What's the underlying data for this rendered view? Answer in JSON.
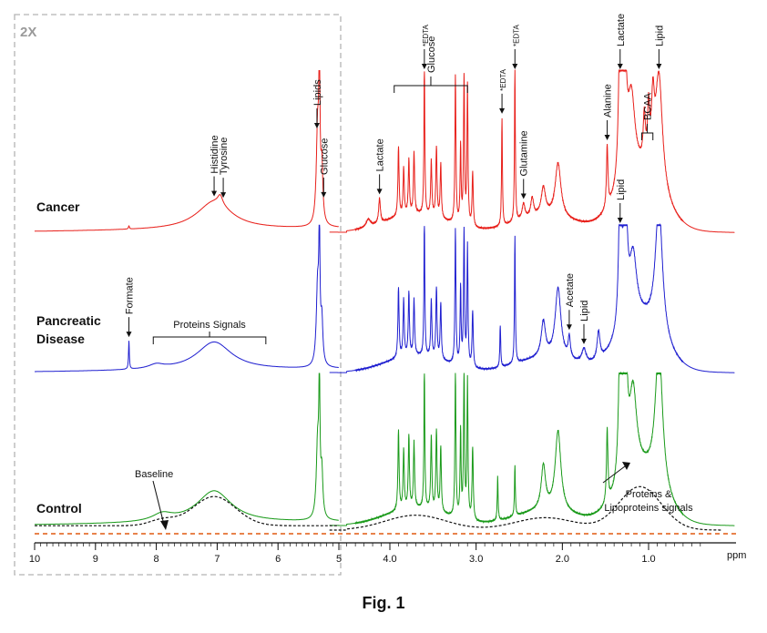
{
  "chart_data": {
    "type": "line",
    "title": "",
    "xlabel": "ppm",
    "x_unit": "ppm",
    "xlim": [
      10,
      0
    ],
    "x_reversed": true,
    "grid": false,
    "zoom_region": {
      "label": "2X",
      "x_range": [
        10,
        5
      ]
    },
    "ticks": {
      "major": [
        10,
        9,
        8,
        7,
        6,
        5,
        4.0,
        3.0,
        2.0,
        1.0
      ],
      "major_labels": [
        "10",
        "9",
        "8",
        "7",
        "6",
        "5",
        "4.0",
        "3.0",
        "2.0",
        "1.0"
      ]
    },
    "series": [
      {
        "name": "Cancer",
        "color": "#e8201b",
        "peaks": [
          {
            "ppm": 8.45,
            "height": 0.02,
            "width": 0.01
          },
          {
            "ppm": 7.05,
            "height": 0.18,
            "width": 0.35
          },
          {
            "ppm": 6.95,
            "height": 0.06,
            "width": 0.05
          },
          {
            "ppm": 5.35,
            "height": 0.6,
            "width": 0.025
          },
          {
            "ppm": 5.32,
            "height": 0.95,
            "width": 0.012
          },
          {
            "ppm": 5.28,
            "height": 0.35,
            "width": 0.02
          },
          {
            "ppm": 4.25,
            "height": 0.05,
            "width": 0.03
          },
          {
            "ppm": 4.12,
            "height": 0.16,
            "width": 0.012
          },
          {
            "ppm": 3.9,
            "height": 0.45,
            "width": 0.008
          },
          {
            "ppm": 3.84,
            "height": 0.3,
            "width": 0.008
          },
          {
            "ppm": 3.78,
            "height": 0.35,
            "width": 0.008
          },
          {
            "ppm": 3.72,
            "height": 0.4,
            "width": 0.008
          },
          {
            "ppm": 3.6,
            "height": 1.0,
            "width": 0.006
          },
          {
            "ppm": 3.52,
            "height": 0.35,
            "width": 0.008
          },
          {
            "ppm": 3.46,
            "height": 0.45,
            "width": 0.008
          },
          {
            "ppm": 3.41,
            "height": 0.35,
            "width": 0.008
          },
          {
            "ppm": 3.24,
            "height": 0.95,
            "width": 0.007
          },
          {
            "ppm": 3.18,
            "height": 0.5,
            "width": 0.007
          },
          {
            "ppm": 3.14,
            "height": 0.95,
            "width": 0.007
          },
          {
            "ppm": 3.1,
            "height": 0.9,
            "width": 0.007
          },
          {
            "ppm": 3.04,
            "height": 0.35,
            "width": 0.008
          },
          {
            "ppm": 2.7,
            "height": 0.7,
            "width": 0.006
          },
          {
            "ppm": 2.55,
            "height": 1.0,
            "width": 0.006
          },
          {
            "ppm": 2.45,
            "height": 0.1,
            "width": 0.02
          },
          {
            "ppm": 2.35,
            "height": 0.12,
            "width": 0.02
          },
          {
            "ppm": 2.22,
            "height": 0.18,
            "width": 0.03
          },
          {
            "ppm": 2.05,
            "height": 0.35,
            "width": 0.04
          },
          {
            "ppm": 1.48,
            "height": 0.4,
            "width": 0.01
          },
          {
            "ppm": 1.33,
            "height": 1.0,
            "width": 0.02
          },
          {
            "ppm": 1.28,
            "height": 0.9,
            "width": 0.025
          },
          {
            "ppm": 1.2,
            "height": 0.5,
            "width": 0.05
          },
          {
            "ppm": 1.05,
            "height": 0.3,
            "width": 0.015
          },
          {
            "ppm": 1.0,
            "height": 0.35,
            "width": 0.015
          },
          {
            "ppm": 0.95,
            "height": 0.4,
            "width": 0.02
          },
          {
            "ppm": 0.88,
            "height": 0.75,
            "width": 0.05
          }
        ]
      },
      {
        "name": "Pancreatic Disease",
        "color": "#2020d0",
        "peaks": [
          {
            "ppm": 8.45,
            "height": 0.2,
            "width": 0.008
          },
          {
            "ppm": 8.0,
            "height": 0.03,
            "width": 0.15
          },
          {
            "ppm": 7.05,
            "height": 0.2,
            "width": 0.35
          },
          {
            "ppm": 5.35,
            "height": 0.55,
            "width": 0.025
          },
          {
            "ppm": 5.32,
            "height": 0.85,
            "width": 0.012
          },
          {
            "ppm": 5.28,
            "height": 0.3,
            "width": 0.02
          },
          {
            "ppm": 3.9,
            "height": 0.5,
            "width": 0.008
          },
          {
            "ppm": 3.84,
            "height": 0.4,
            "width": 0.008
          },
          {
            "ppm": 3.78,
            "height": 0.45,
            "width": 0.008
          },
          {
            "ppm": 3.72,
            "height": 0.4,
            "width": 0.008
          },
          {
            "ppm": 3.6,
            "height": 1.0,
            "width": 0.006
          },
          {
            "ppm": 3.52,
            "height": 0.4,
            "width": 0.008
          },
          {
            "ppm": 3.46,
            "height": 0.5,
            "width": 0.008
          },
          {
            "ppm": 3.41,
            "height": 0.4,
            "width": 0.008
          },
          {
            "ppm": 3.24,
            "height": 0.95,
            "width": 0.007
          },
          {
            "ppm": 3.18,
            "height": 0.55,
            "width": 0.007
          },
          {
            "ppm": 3.14,
            "height": 0.95,
            "width": 0.007
          },
          {
            "ppm": 3.1,
            "height": 0.85,
            "width": 0.007
          },
          {
            "ppm": 3.04,
            "height": 0.4,
            "width": 0.008
          },
          {
            "ppm": 2.72,
            "height": 0.3,
            "width": 0.006
          },
          {
            "ppm": 2.55,
            "height": 0.9,
            "width": 0.006
          },
          {
            "ppm": 2.22,
            "height": 0.25,
            "width": 0.03
          },
          {
            "ppm": 2.05,
            "height": 0.5,
            "width": 0.04
          },
          {
            "ppm": 1.92,
            "height": 0.15,
            "width": 0.015
          },
          {
            "ppm": 1.75,
            "height": 0.1,
            "width": 0.03
          },
          {
            "ppm": 1.58,
            "height": 0.2,
            "width": 0.02
          },
          {
            "ppm": 1.33,
            "height": 1.0,
            "width": 0.02
          },
          {
            "ppm": 1.27,
            "height": 0.95,
            "width": 0.025
          },
          {
            "ppm": 1.18,
            "height": 0.45,
            "width": 0.05
          },
          {
            "ppm": 0.88,
            "height": 0.95,
            "width": 0.05
          }
        ]
      },
      {
        "name": "Control",
        "color": "#1a9a1a",
        "peaks": [
          {
            "ppm": 7.9,
            "height": 0.05,
            "width": 0.2
          },
          {
            "ppm": 7.05,
            "height": 0.22,
            "width": 0.35
          },
          {
            "ppm": 5.35,
            "height": 0.5,
            "width": 0.025
          },
          {
            "ppm": 5.32,
            "height": 0.85,
            "width": 0.012
          },
          {
            "ppm": 5.28,
            "height": 0.3,
            "width": 0.02
          },
          {
            "ppm": 3.9,
            "height": 0.55,
            "width": 0.008
          },
          {
            "ppm": 3.84,
            "height": 0.4,
            "width": 0.008
          },
          {
            "ppm": 3.78,
            "height": 0.5,
            "width": 0.008
          },
          {
            "ppm": 3.72,
            "height": 0.45,
            "width": 0.008
          },
          {
            "ppm": 3.6,
            "height": 1.0,
            "width": 0.006
          },
          {
            "ppm": 3.52,
            "height": 0.5,
            "width": 0.008
          },
          {
            "ppm": 3.46,
            "height": 0.55,
            "width": 0.008
          },
          {
            "ppm": 3.41,
            "height": 0.45,
            "width": 0.008
          },
          {
            "ppm": 3.24,
            "height": 1.0,
            "width": 0.007
          },
          {
            "ppm": 3.18,
            "height": 0.6,
            "width": 0.007
          },
          {
            "ppm": 3.14,
            "height": 1.0,
            "width": 0.007
          },
          {
            "ppm": 3.1,
            "height": 0.95,
            "width": 0.007
          },
          {
            "ppm": 3.04,
            "height": 0.5,
            "width": 0.008
          },
          {
            "ppm": 2.75,
            "height": 0.3,
            "width": 0.006
          },
          {
            "ppm": 2.55,
            "height": 0.35,
            "width": 0.006
          },
          {
            "ppm": 2.22,
            "height": 0.3,
            "width": 0.03
          },
          {
            "ppm": 2.05,
            "height": 0.55,
            "width": 0.04
          },
          {
            "ppm": 1.48,
            "height": 0.5,
            "width": 0.01
          },
          {
            "ppm": 1.33,
            "height": 1.0,
            "width": 0.02
          },
          {
            "ppm": 1.27,
            "height": 0.95,
            "width": 0.025
          },
          {
            "ppm": 1.18,
            "height": 0.55,
            "width": 0.05
          },
          {
            "ppm": 0.88,
            "height": 1.0,
            "width": 0.05
          }
        ]
      }
    ],
    "baseline": {
      "label": "Baseline",
      "style": "orange dashed line",
      "color": "#e05a10"
    },
    "envelope": {
      "label": "Proteins & Lipoproteins signals",
      "label_lines": [
        "Proteins &",
        "Lipoproteins signals"
      ],
      "style": "black dotted line under Control spectrum"
    },
    "annotations": [
      {
        "series": "Cancer",
        "text": "Histidine",
        "ppm": 7.05,
        "rotated": true
      },
      {
        "series": "Cancer",
        "text": "Tyrosine",
        "ppm": 6.9,
        "rotated": true
      },
      {
        "series": "Cancer",
        "text": "Lipids",
        "ppm": 5.36,
        "rotated": true
      },
      {
        "series": "Cancer",
        "text": "Glucose",
        "ppm": 5.25,
        "rotated": true
      },
      {
        "series": "Cancer",
        "text": "Lactate",
        "ppm": 4.12,
        "rotated": true
      },
      {
        "series": "Cancer",
        "text": "*EDTA",
        "ppm": 3.6,
        "rotated": true,
        "small": true
      },
      {
        "series": "Cancer",
        "text": "Glucose",
        "ppm_range": [
          3.95,
          3.1
        ],
        "rotated": true,
        "bracket": true
      },
      {
        "series": "Cancer",
        "text": "*EDTA",
        "ppm": 2.7,
        "rotated": true,
        "small": true
      },
      {
        "series": "Cancer",
        "text": "*EDTA",
        "ppm": 2.55,
        "rotated": true,
        "small": true
      },
      {
        "series": "Cancer",
        "text": "Glutamine",
        "ppm": 2.45,
        "rotated": true
      },
      {
        "series": "Cancer",
        "text": "Alanine",
        "ppm": 1.48,
        "rotated": true
      },
      {
        "series": "Cancer",
        "text": "Lactate",
        "ppm": 1.33,
        "rotated": true
      },
      {
        "series": "Cancer",
        "text": "BCAA",
        "ppm_range": [
          1.08,
          0.95
        ],
        "rotated": true,
        "bracket": true
      },
      {
        "series": "Cancer",
        "text": "Lipid",
        "ppm": 0.88,
        "rotated": true
      },
      {
        "series": "Pancreatic Disease",
        "text": "Formate",
        "ppm": 8.45,
        "rotated": true
      },
      {
        "series": "Pancreatic Disease",
        "text": "Proteins Signals",
        "ppm_range": [
          8.05,
          6.2
        ],
        "bracket": true
      },
      {
        "series": "Pancreatic Disease",
        "text": "Acetate",
        "ppm": 1.92,
        "rotated": true
      },
      {
        "series": "Pancreatic Disease",
        "text": "Lipid",
        "ppm": 1.75,
        "rotated": true
      },
      {
        "series": "Pancreatic Disease",
        "text": "Lipid",
        "ppm": 1.33,
        "rotated": true
      }
    ]
  },
  "figure": {
    "caption": "Fig. 1"
  }
}
